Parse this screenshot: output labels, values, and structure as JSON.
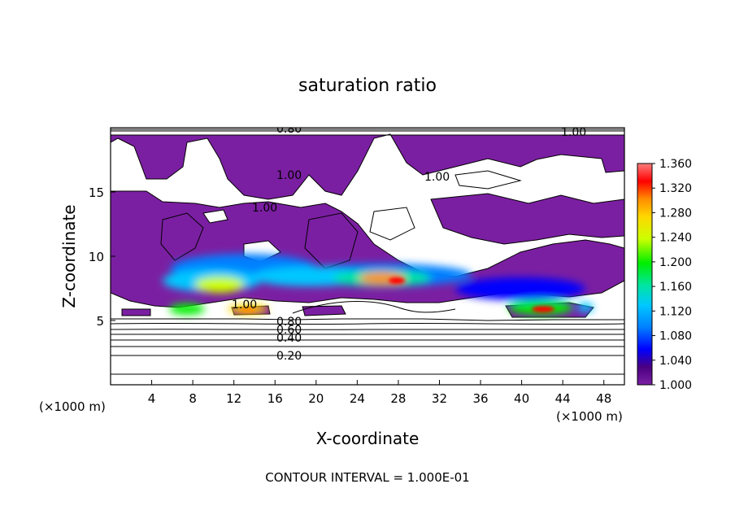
{
  "chart_data": {
    "type": "heatmap",
    "title": "saturation ratio",
    "xlabel": "X-coordinate",
    "ylabel": "Z-coordinate",
    "x_unit": "(×1000 m)",
    "z_unit": "(×1000 m)",
    "xlim": [
      0,
      50
    ],
    "ylim": [
      0,
      20
    ],
    "x_ticks": [
      4,
      8,
      12,
      16,
      20,
      24,
      28,
      32,
      36,
      40,
      44,
      48
    ],
    "y_ticks": [
      5,
      10,
      15
    ],
    "colorbar": {
      "ticks": [
        "1.360",
        "1.320",
        "1.280",
        "1.240",
        "1.200",
        "1.160",
        "1.120",
        "1.080",
        "1.040",
        "1.000"
      ],
      "colors": [
        "#ff7f7f",
        "#ff0000",
        "#ff8c00",
        "#ffd700",
        "#ccff00",
        "#00ee00",
        "#00e5a0",
        "#00c8ff",
        "#0080ff",
        "#0000ff",
        "#4b0082",
        "#7b1fa2"
      ],
      "range": [
        1.0,
        1.36
      ]
    },
    "contour_labels": [
      "0.20",
      "0.40",
      "0.60",
      "0.80",
      "1.00"
    ],
    "footer": "CONTOUR INTERVAL = 1.000E-01"
  }
}
